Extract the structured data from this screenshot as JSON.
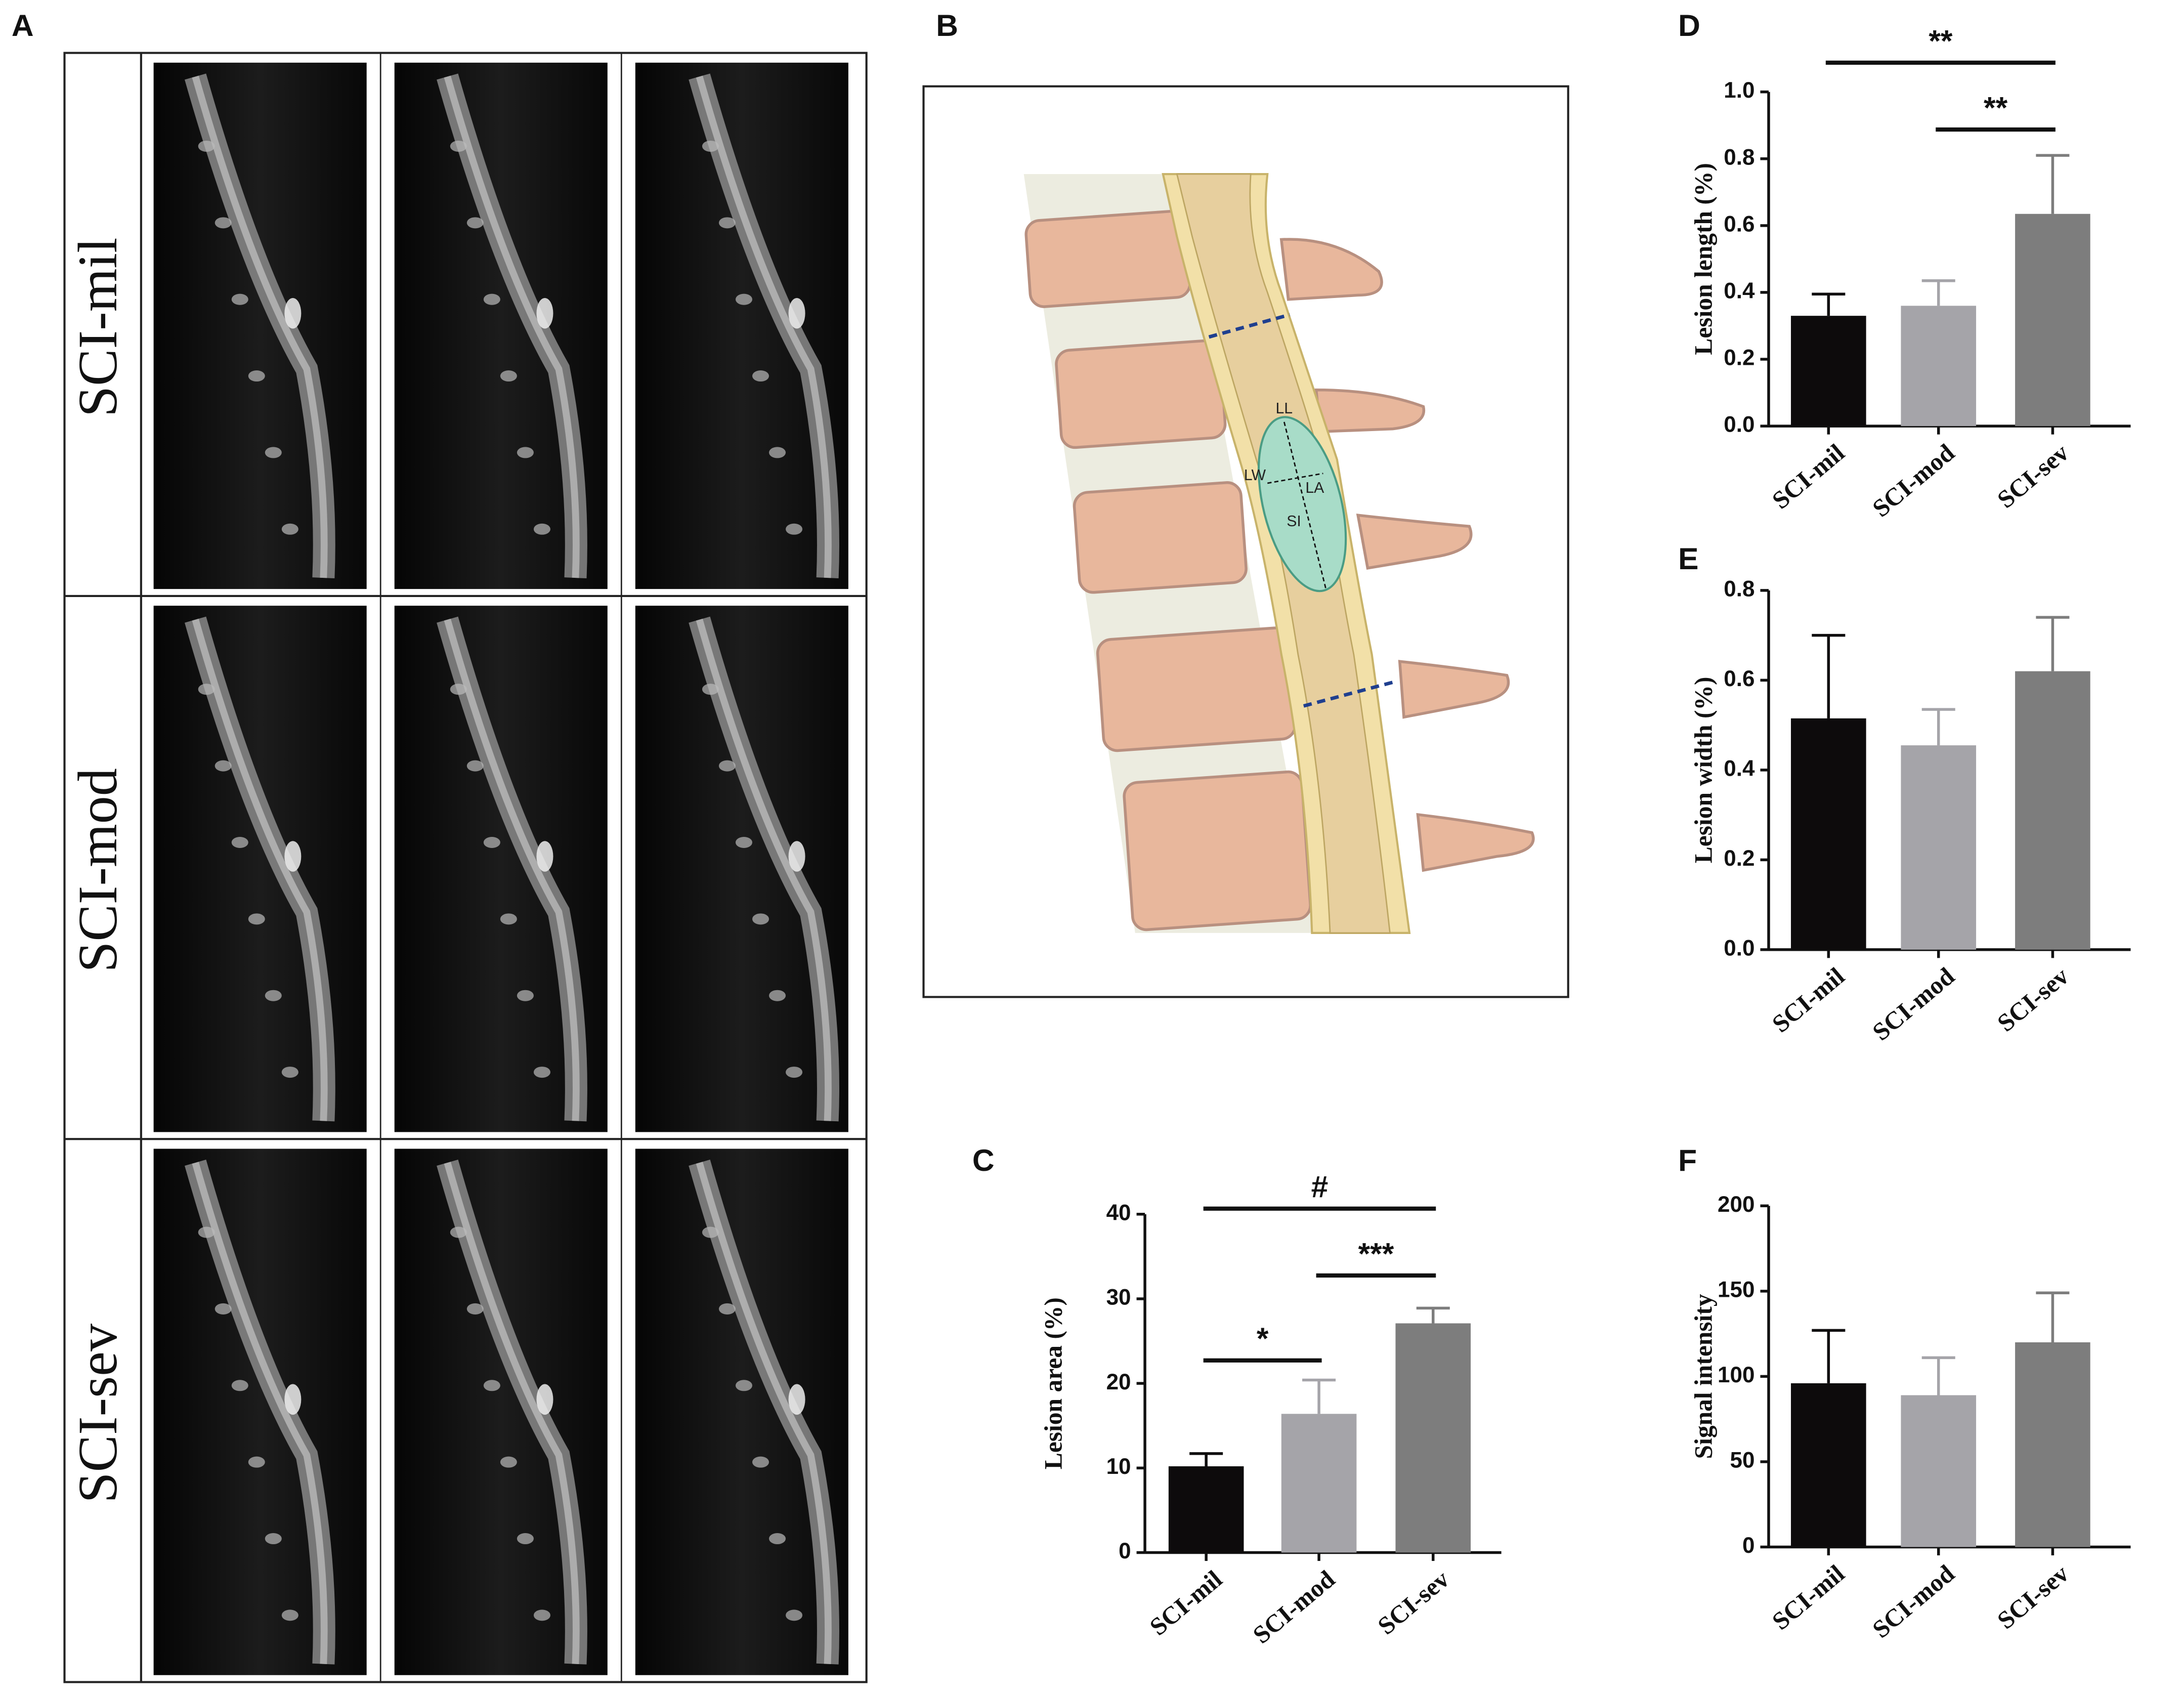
{
  "figure": {
    "panel_labels": [
      "A",
      "B",
      "C",
      "D",
      "E",
      "F"
    ],
    "mri_rows": [
      "SCI-mil",
      "SCI-mod",
      "SCI-sev"
    ],
    "diagram_labels": [
      "LL",
      "LW",
      "LA",
      "SI"
    ]
  },
  "chart_data": [
    {
      "type": "bar",
      "ylabel": "Lesion area (%)",
      "categories": [
        "SCI-mil",
        "SCI-mod",
        "SCI-sev"
      ],
      "values": [
        10.2,
        16.4,
        27.1
      ],
      "errors": [
        1.5,
        4.0,
        1.8
      ],
      "colors": [
        "#0d0b0c",
        "#a5a4a9",
        "#7d7d7d"
      ],
      "ylim": [
        0,
        40
      ],
      "yticks": [
        0,
        10,
        20,
        30,
        40
      ],
      "significance": [
        {
          "label": "#",
          "from": "SCI-mil",
          "to": "SCI-sev"
        },
        {
          "label": "***",
          "from": "SCI-mod",
          "to": "SCI-sev"
        },
        {
          "label": "*",
          "from": "SCI-mil",
          "to": "SCI-mod"
        }
      ]
    },
    {
      "type": "bar",
      "ylabel": "Lesion length (%)",
      "categories": [
        "SCI-mil",
        "SCI-mod",
        "SCI-sev"
      ],
      "values": [
        0.33,
        0.36,
        0.635
      ],
      "errors": [
        0.065,
        0.075,
        0.175
      ],
      "colors": [
        "#0d0b0c",
        "#a5a4a9",
        "#7d7d7d"
      ],
      "ylim": [
        0,
        1
      ],
      "yticks": [
        {
          "value": 0,
          "label": "0.0"
        },
        {
          "value": 0.2,
          "label": "0.2"
        },
        {
          "value": 0.4,
          "label": "0.4"
        },
        {
          "value": 0.6,
          "label": "0.6"
        },
        {
          "value": 0.8,
          "label": "0.8"
        },
        {
          "value": 1,
          "label": "1.0"
        }
      ],
      "significance": [
        {
          "label": "**",
          "from": "SCI-mil",
          "to": "SCI-sev"
        },
        {
          "label": "**",
          "from": "SCI-mod",
          "to": "SCI-sev"
        }
      ]
    },
    {
      "type": "bar",
      "ylabel": "Lesion width (%)",
      "categories": [
        "SCI-mil",
        "SCI-mod",
        "SCI-sev"
      ],
      "values": [
        0.515,
        0.455,
        0.62
      ],
      "errors": [
        0.185,
        0.08,
        0.12
      ],
      "colors": [
        "#0d0b0c",
        "#a5a4a9",
        "#7d7d7d"
      ],
      "ylim": [
        0,
        0.8
      ],
      "yticks": [
        {
          "value": 0,
          "label": "0.0"
        },
        {
          "value": 0.2,
          "label": "0.2"
        },
        {
          "value": 0.4,
          "label": "0.4"
        },
        {
          "value": 0.6,
          "label": "0.6"
        },
        {
          "value": 0.8,
          "label": "0.8"
        }
      ]
    },
    {
      "type": "bar",
      "ylabel": "Signal intensity",
      "categories": [
        "SCI-mil",
        "SCI-mod",
        "SCI-sev"
      ],
      "values": [
        96,
        89,
        120
      ],
      "errors": [
        31,
        22,
        29
      ],
      "colors": [
        "#0d0b0c",
        "#a5a4a9",
        "#7d7d7d"
      ],
      "ylim": [
        0,
        200
      ],
      "yticks": [
        0,
        50,
        100,
        150,
        200
      ]
    }
  ]
}
